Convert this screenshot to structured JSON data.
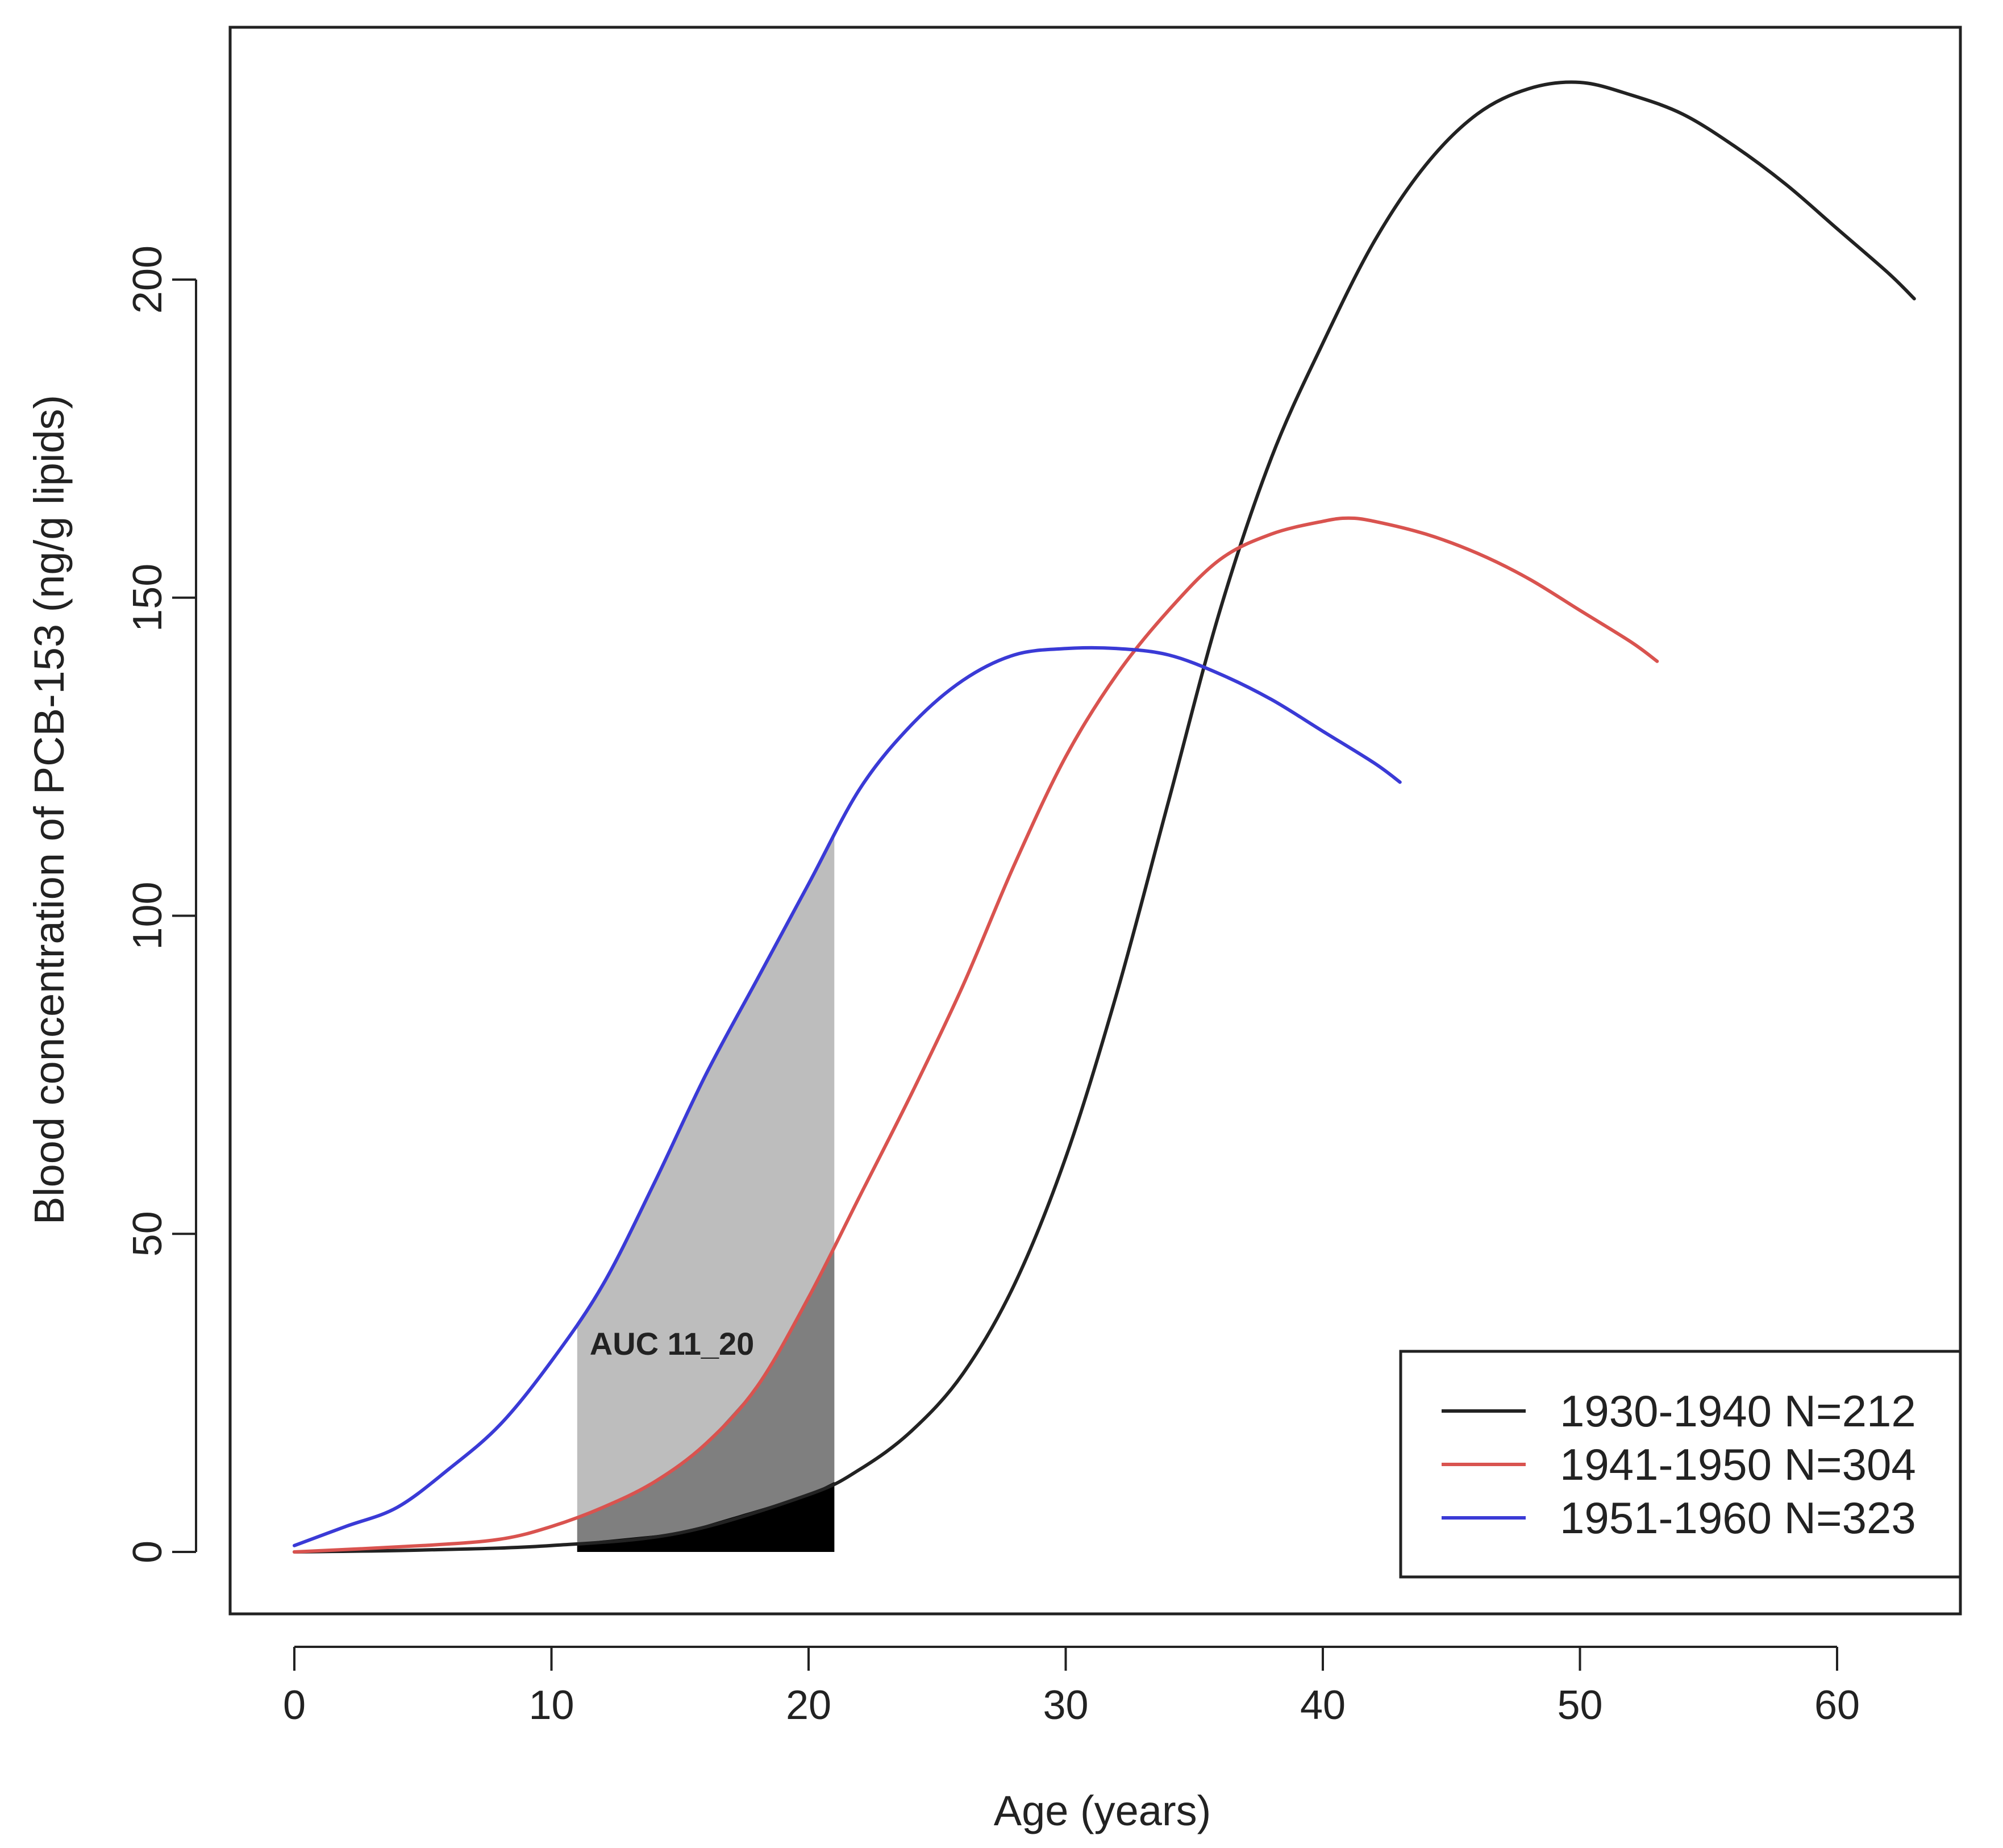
{
  "chart_data": {
    "type": "line",
    "title": "",
    "xlabel": "Age (years)",
    "ylabel": "Blood concentration of PCB-153 (ng/g lipids)",
    "xlim": [
      -2.5,
      65
    ],
    "ylim": [
      -9,
      240
    ],
    "xticks": [
      0,
      10,
      20,
      30,
      40,
      50,
      60
    ],
    "yticks": [
      0,
      50,
      100,
      150,
      200
    ],
    "x_tick_labels": [
      "0",
      "10",
      "20",
      "30",
      "40",
      "50",
      "60"
    ],
    "y_tick_labels": [
      "0",
      "50",
      "100",
      "150",
      "200"
    ],
    "grid": false,
    "legend_position": "bottom-right",
    "series": [
      {
        "name": "1930-1940 N=212",
        "color": "#222222",
        "x": [
          0,
          5,
          10,
          15,
          20,
          22,
          24,
          26,
          28,
          30,
          32,
          34,
          36,
          38,
          40,
          42,
          44,
          46,
          48,
          50,
          52,
          54,
          56,
          58,
          60,
          62,
          63
        ],
        "y": [
          0,
          0.3,
          1,
          3,
          9,
          13,
          19,
          28,
          42,
          62,
          88,
          118,
          148,
          172,
          190,
          206,
          218,
          226,
          230,
          231,
          229,
          226,
          221,
          215,
          208,
          201,
          197
        ]
      },
      {
        "name": "1941-1950 N=304",
        "color": "#d9534f",
        "x": [
          0,
          5,
          8,
          10,
          12,
          14,
          16,
          18,
          20,
          22,
          24,
          26,
          28,
          30,
          32,
          34,
          36,
          38,
          40,
          41,
          42,
          44,
          46,
          48,
          50,
          52,
          53
        ],
        "y": [
          0,
          1,
          2,
          4,
          7,
          11,
          17,
          26,
          40,
          56,
          72,
          89,
          108,
          125,
          138,
          148,
          156,
          160,
          162,
          162.5,
          162,
          160,
          157,
          153,
          148,
          143,
          140
        ]
      },
      {
        "name": "1951-1960 N=323",
        "color": "#3a3ad6",
        "x": [
          0,
          2,
          4,
          6,
          8,
          10,
          12,
          14,
          16,
          18,
          20,
          22,
          24,
          26,
          28,
          30,
          32,
          34,
          36,
          38,
          40,
          42,
          43
        ],
        "y": [
          1,
          4,
          7,
          13,
          20,
          30,
          42,
          58,
          75,
          90,
          105,
          120,
          130,
          137,
          141,
          142,
          142,
          141,
          138,
          134,
          129,
          124,
          121
        ]
      }
    ],
    "shaded_region": {
      "x_start": 11,
      "x_end": 21
    },
    "annotations": [
      {
        "text": "AUC 11_20",
        "x": 11,
        "y": 31
      }
    ]
  },
  "colors": {
    "shade_1951_1960": "#bdbdbd",
    "shade_1941_1950": "#7f7f7f",
    "shade_1930_1940": "#000000",
    "axis": "#222222",
    "background": "#ffffff"
  }
}
